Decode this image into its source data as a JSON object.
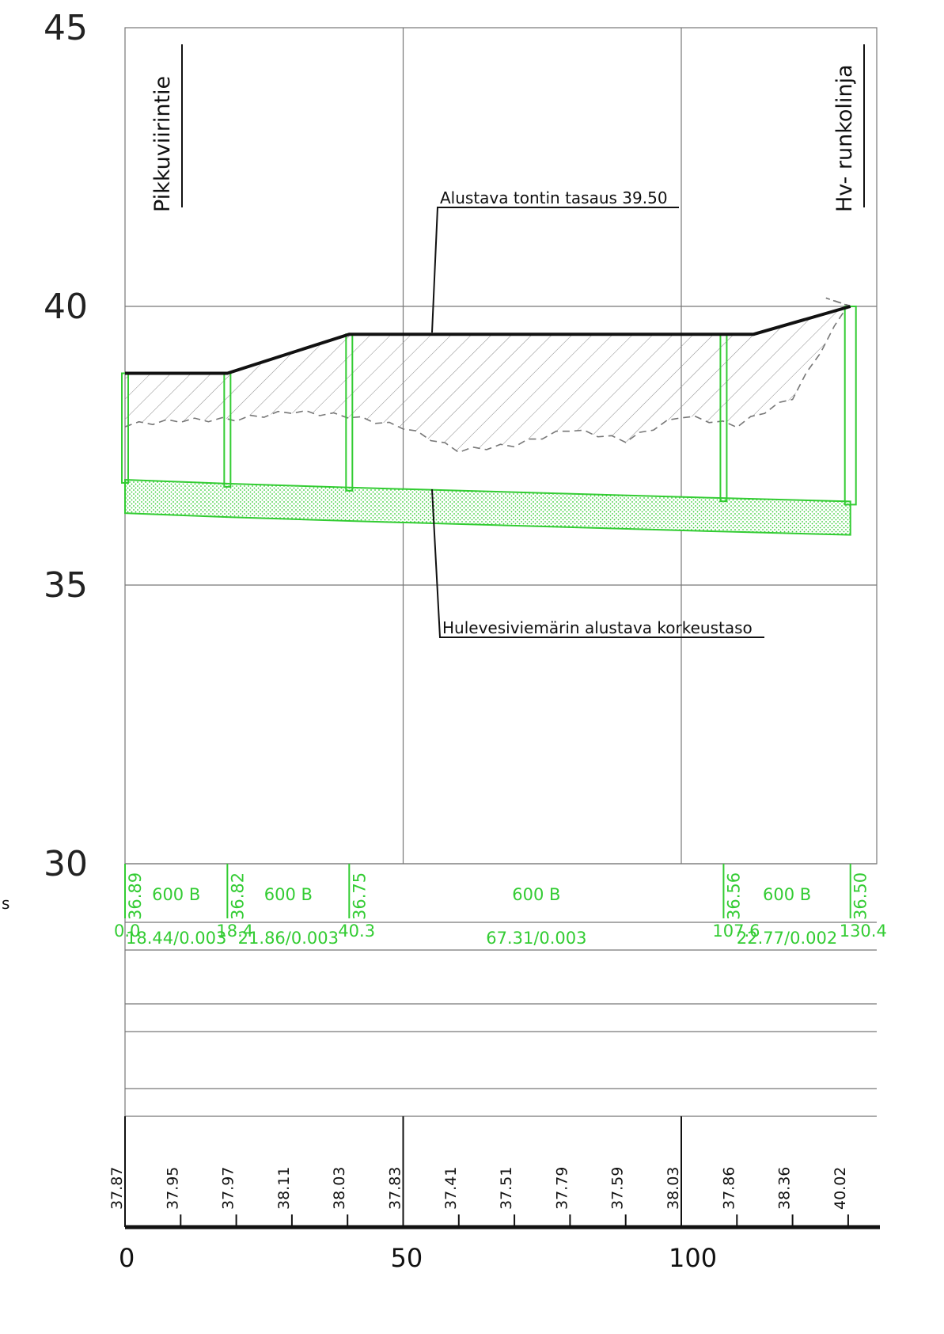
{
  "chart_data": {
    "type": "line",
    "title": "",
    "xlabel": "",
    "ylabel": "",
    "xlim": [
      0,
      135
    ],
    "ylim": [
      30,
      45
    ],
    "x_ticks": [
      0,
      50,
      100
    ],
    "y_ticks": [
      30,
      35,
      40,
      45
    ],
    "grid": true,
    "series": [
      {
        "name": "Alustava tontin tasaus 39.50",
        "points": [
          [
            0,
            38.8
          ],
          [
            18.4,
            38.8
          ],
          [
            40.3,
            39.5
          ],
          [
            113,
            39.5
          ],
          [
            130.4,
            40.0
          ]
        ]
      }
    ],
    "labels": {
      "left_road": "Pikkuviirintie",
      "right_line": "Hv- runkolinja",
      "grading_label": "Alustava tontin tasaus 39.50",
      "sewer_label": "Hulevesiviemärin alustava korkeustaso",
      "stray_char": "s"
    },
    "manholes": [
      {
        "station": 0,
        "label_station": "0.0",
        "invert": "36.89"
      },
      {
        "station": 18.4,
        "label_station": "18.4",
        "invert": "36.82"
      },
      {
        "station": 40.3,
        "label_station": "40.3",
        "invert": "36.75"
      },
      {
        "station": 107.6,
        "label_station": "107.6",
        "invert": "36.56"
      },
      {
        "station": 130.4,
        "label_station": "130.4",
        "invert": "36.50"
      }
    ],
    "pipes": [
      {
        "from": 0,
        "to": 18.4,
        "size": "600 B",
        "spec": "18.44/0.003"
      },
      {
        "from": 18.4,
        "to": 40.3,
        "size": "600 B",
        "spec": "21.86/0.003"
      },
      {
        "from": 40.3,
        "to": 107.6,
        "size": "600 B",
        "spec": "67.31/0.003"
      },
      {
        "from": 107.6,
        "to": 130.4,
        "size": "600 B",
        "spec": "22.77/0.002"
      }
    ],
    "ground_levels": [
      {
        "station": 0,
        "value": "37.87"
      },
      {
        "station": 10,
        "value": "37.95"
      },
      {
        "station": 20,
        "value": "37.97"
      },
      {
        "station": 30,
        "value": "38.11"
      },
      {
        "station": 40,
        "value": "38.03"
      },
      {
        "station": 50,
        "value": "37.83"
      },
      {
        "station": 60,
        "value": "37.41"
      },
      {
        "station": 70,
        "value": "37.51"
      },
      {
        "station": 80,
        "value": "37.79"
      },
      {
        "station": 90,
        "value": "37.59"
      },
      {
        "station": 100,
        "value": "38.03"
      },
      {
        "station": 110,
        "value": "37.86"
      },
      {
        "station": 120,
        "value": "38.36"
      },
      {
        "station": 130,
        "value": "40.02"
      }
    ],
    "colors": {
      "pipe": "#33cc33",
      "grading": "#111111",
      "grid": "#777777"
    }
  }
}
